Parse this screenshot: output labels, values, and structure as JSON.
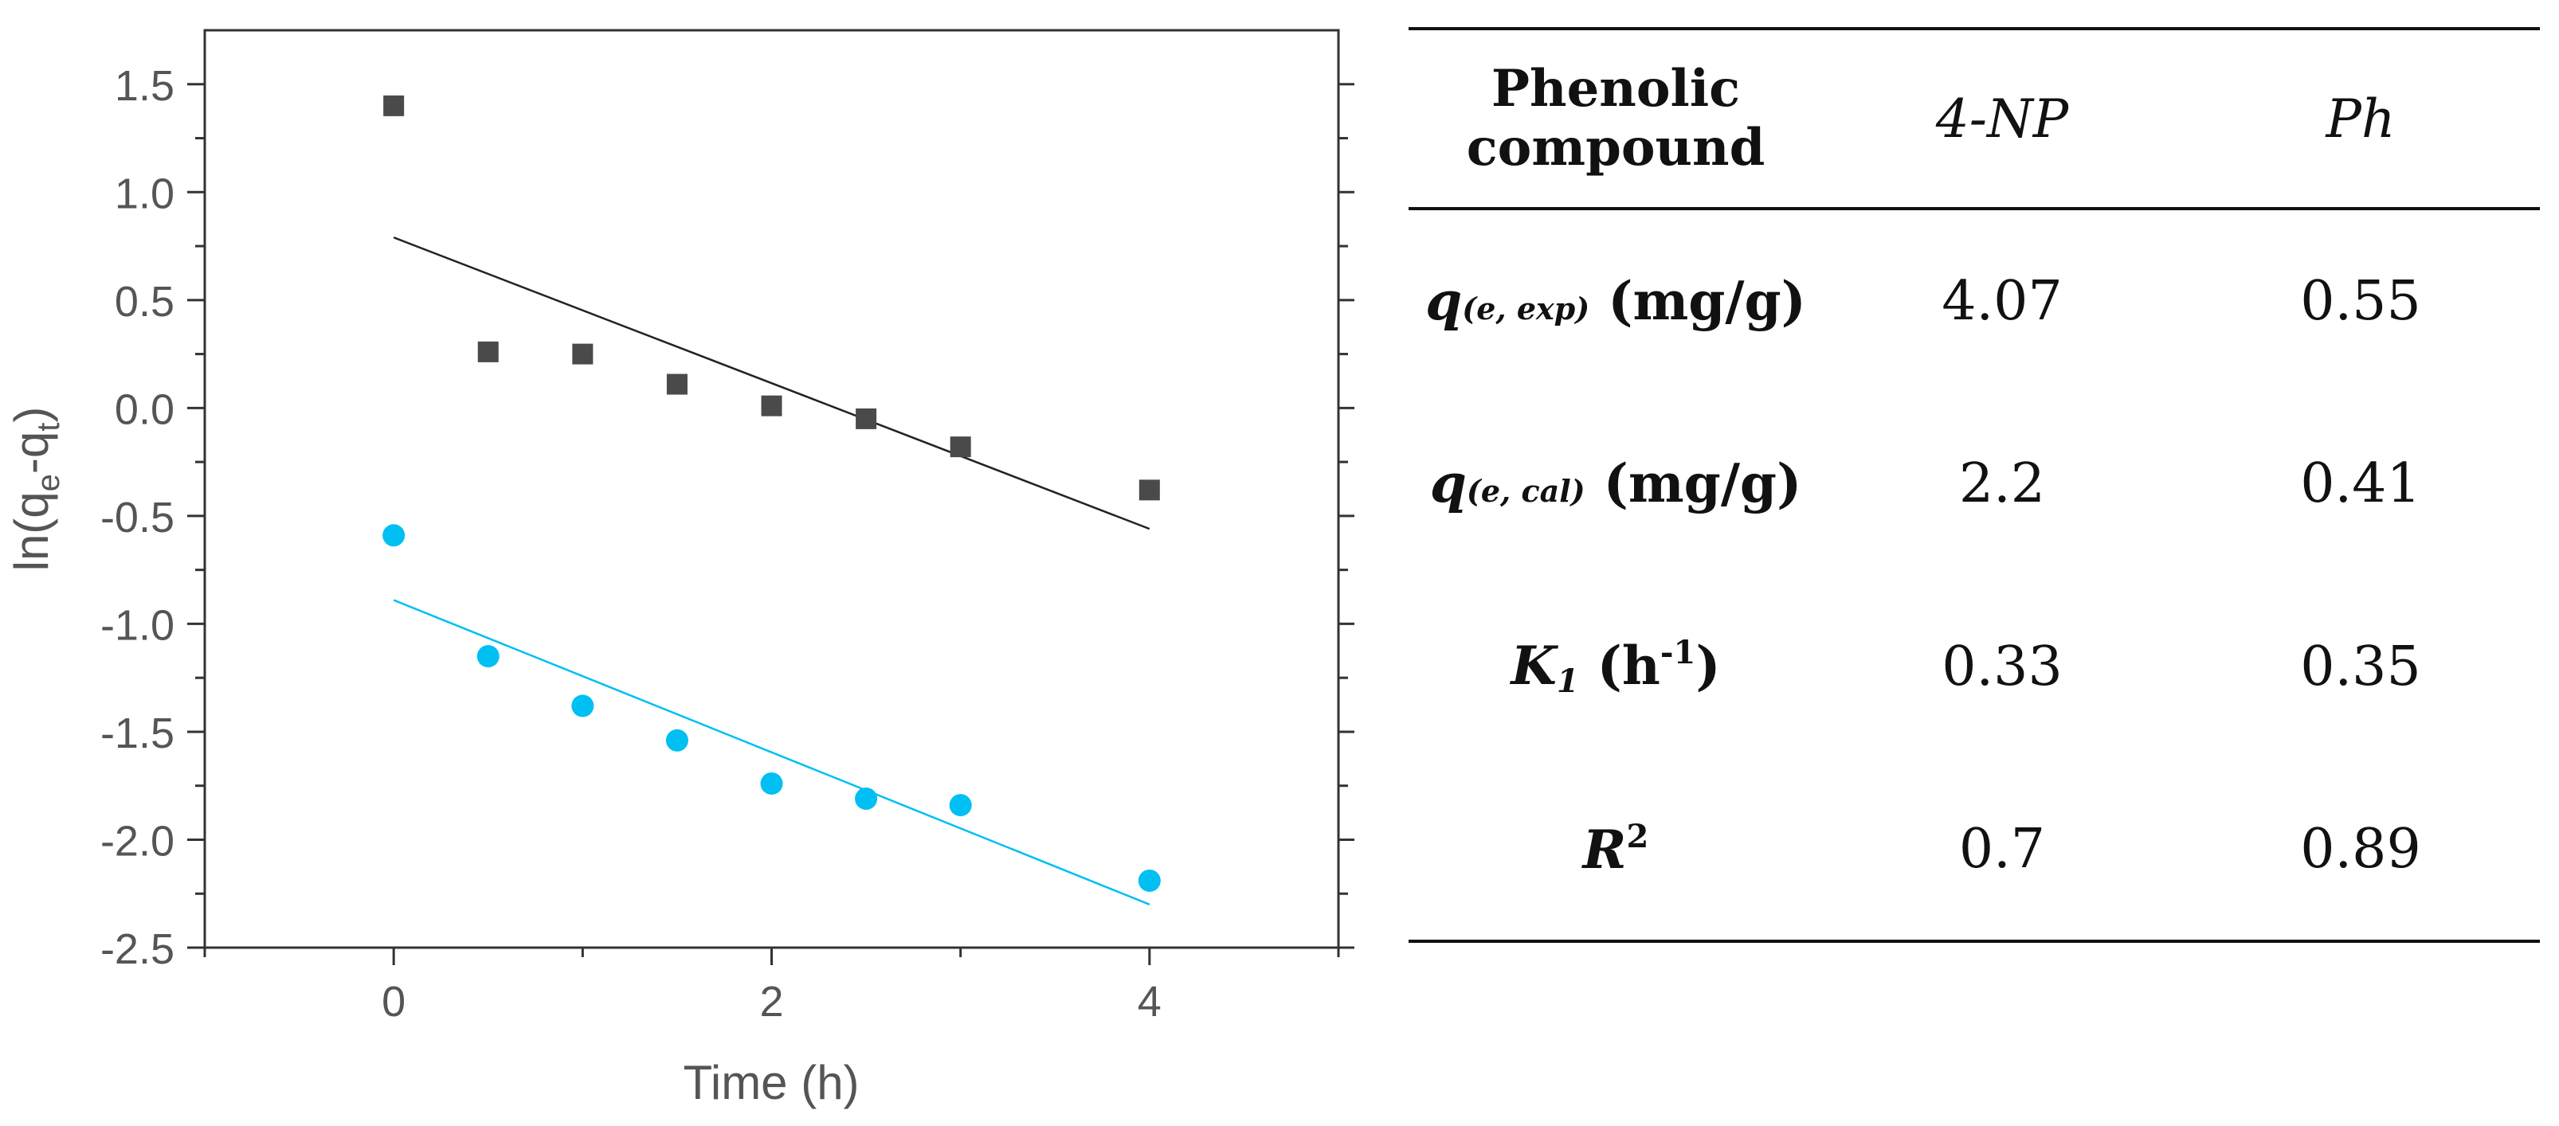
{
  "chart_data": {
    "type": "scatter",
    "xlabel": "Time (h)",
    "ylabel_base": "ln(q",
    "ylabel_sub1": "e",
    "ylabel_mid": "-q",
    "ylabel_sub2": "t",
    "ylabel_end": ")",
    "xlim": [
      -1,
      5
    ],
    "ylim": [
      -2.5,
      1.75
    ],
    "x_ticks": [
      0,
      2,
      4
    ],
    "x_tick_labels": [
      "0",
      "2",
      "4"
    ],
    "x_minor_ticks": [
      -1,
      1,
      3,
      5
    ],
    "y_ticks": [
      1.5,
      1.0,
      0.5,
      0.0,
      -0.5,
      -1.0,
      -1.5,
      -2.0,
      -2.5
    ],
    "y_tick_labels": [
      "1.5",
      "1.0",
      "0.5",
      "0.0",
      "-0.5",
      "-1.0",
      "-1.5",
      "-2.0",
      "-2.5"
    ],
    "y_minor_ticks": [
      1.25,
      0.75,
      0.25,
      -0.25,
      -0.75,
      -1.25,
      -1.75,
      -2.25
    ],
    "series": [
      {
        "name": "4-NP",
        "marker": "square",
        "color": "#4a4a4a",
        "line_color": "#222222",
        "x": [
          0,
          0.5,
          1,
          1.5,
          2,
          2.5,
          3,
          4
        ],
        "y": [
          1.4,
          0.26,
          0.25,
          0.11,
          0.01,
          -0.05,
          -0.18,
          -0.38
        ],
        "fit": {
          "x": [
            0,
            4
          ],
          "y": [
            0.79,
            -0.56
          ]
        }
      },
      {
        "name": "Ph",
        "marker": "circle",
        "color": "#00bff3",
        "line_color": "#00bff3",
        "x": [
          0,
          0.5,
          1,
          1.5,
          2,
          2.5,
          3,
          4
        ],
        "y": [
          -0.59,
          -1.15,
          -1.38,
          -1.54,
          -1.74,
          -1.81,
          -1.84,
          -2.19
        ],
        "fit": {
          "x": [
            0,
            4
          ],
          "y": [
            -0.89,
            -2.3
          ]
        }
      }
    ]
  },
  "table": {
    "header": {
      "col0_line1": "Phenolic",
      "col0_line2": "compound",
      "col1": "4-NP",
      "col2": "Ph"
    },
    "rows": [
      {
        "sym": "q",
        "sub": "(e, exp)",
        "unit": " (mg/g)",
        "v1": "4.07",
        "v2": "0.55"
      },
      {
        "sym": "q",
        "sub": "(e, cal)",
        "unit": " (mg/g)",
        "v1": "2.2",
        "v2": "0.41"
      },
      {
        "sym": "K",
        "sub": "1",
        "unit_pre": " (h",
        "sup": "-1",
        "unit_post": ")",
        "v1": "0.33",
        "v2": "0.35"
      },
      {
        "sym": "R",
        "sup": "2",
        "v1": "0.7",
        "v2": "0.89"
      }
    ]
  }
}
